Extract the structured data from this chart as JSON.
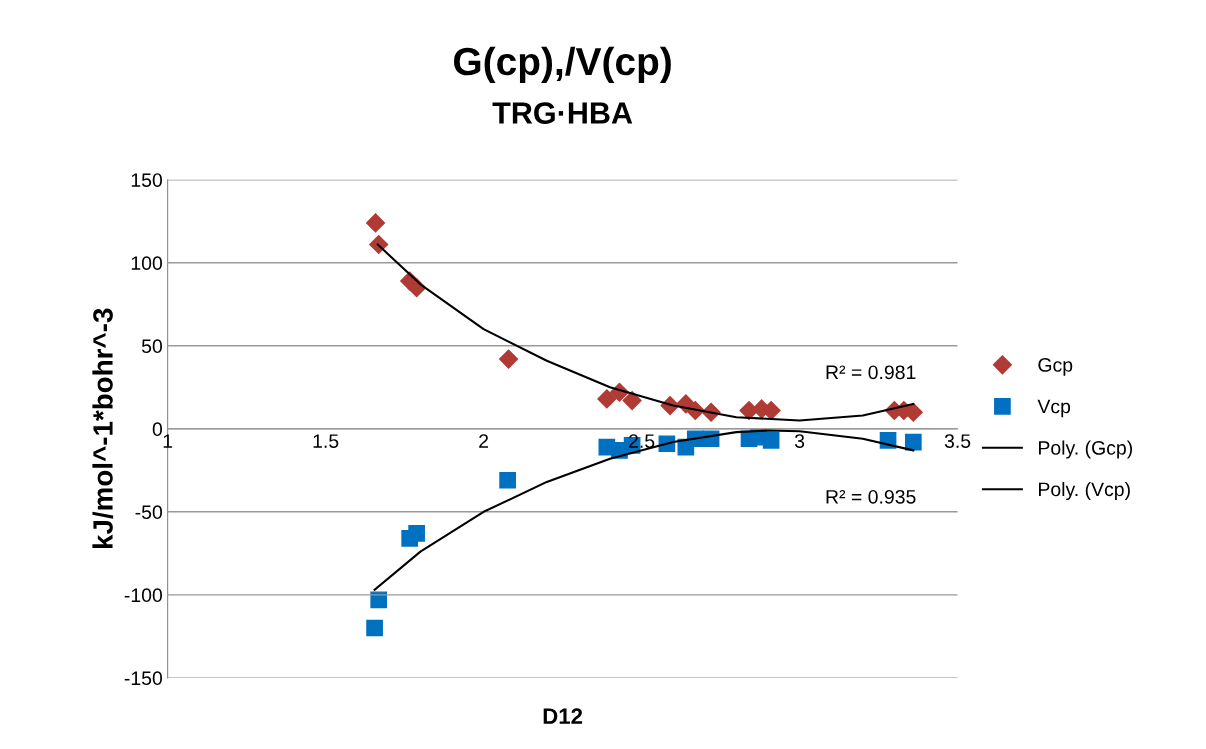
{
  "chart_data": {
    "type": "scatter",
    "title": "G(cp),/V(cp)",
    "subtitle": "TRG·HBA",
    "xlabel": "D12",
    "ylabel": "kJ/mol^-1*bohr^-3",
    "xlim": [
      1,
      3.5
    ],
    "xticks": [
      1,
      1.5,
      2,
      2.5,
      3,
      3.5
    ],
    "ylim": [
      -150,
      150
    ],
    "yticks": [
      -150,
      -100,
      -50,
      0,
      50,
      100,
      150
    ],
    "grid": "y",
    "legend": "right",
    "annotations": [
      "R² = 0.981",
      "R² = 0.935"
    ],
    "series": [
      {
        "name": "Gcp",
        "color": "#b03a34",
        "marker": "diamond",
        "x": [
          1.658,
          1.668,
          1.766,
          1.788,
          2.079,
          2.39,
          2.43,
          2.47,
          2.59,
          2.64,
          2.67,
          2.72,
          2.84,
          2.88,
          2.91,
          3.3,
          3.33,
          3.36
        ],
        "values": [
          124,
          111,
          89,
          85,
          42,
          18,
          22,
          17,
          14,
          15,
          11,
          10,
          11,
          12,
          11,
          11,
          11,
          10
        ]
      },
      {
        "name": "Vcp",
        "color": "#0070c0",
        "marker": "square",
        "x": [
          1.655,
          1.668,
          1.766,
          1.788,
          2.076,
          2.39,
          2.43,
          2.47,
          2.58,
          2.64,
          2.67,
          2.72,
          2.84,
          2.87,
          2.91,
          3.28,
          3.36
        ],
        "values": [
          -120,
          -103,
          -66,
          -63,
          -31,
          -11,
          -13,
          -10,
          -9,
          -11,
          -6,
          -6,
          -6,
          -5,
          -7,
          -7,
          -8
        ]
      },
      {
        "name": "Poly. (Gcp)",
        "type": "line",
        "color": "#000000",
        "marker": "none",
        "x": [
          1.665,
          1.8,
          2.0,
          2.2,
          2.4,
          2.6,
          2.8,
          3.0,
          3.2,
          3.36
        ],
        "values": [
          111,
          87,
          60,
          41,
          25,
          14,
          7,
          5,
          8,
          15
        ]
      },
      {
        "name": "Poly. (Vcp)",
        "type": "line",
        "color": "#000000",
        "marker": "none",
        "x": [
          1.655,
          1.8,
          2.0,
          2.2,
          2.4,
          2.6,
          2.8,
          2.9,
          3.0,
          3.2,
          3.36
        ],
        "values": [
          -97,
          -74,
          -50,
          -32,
          -18,
          -8,
          -2,
          -1,
          -1.5,
          -6,
          -13
        ]
      }
    ]
  }
}
